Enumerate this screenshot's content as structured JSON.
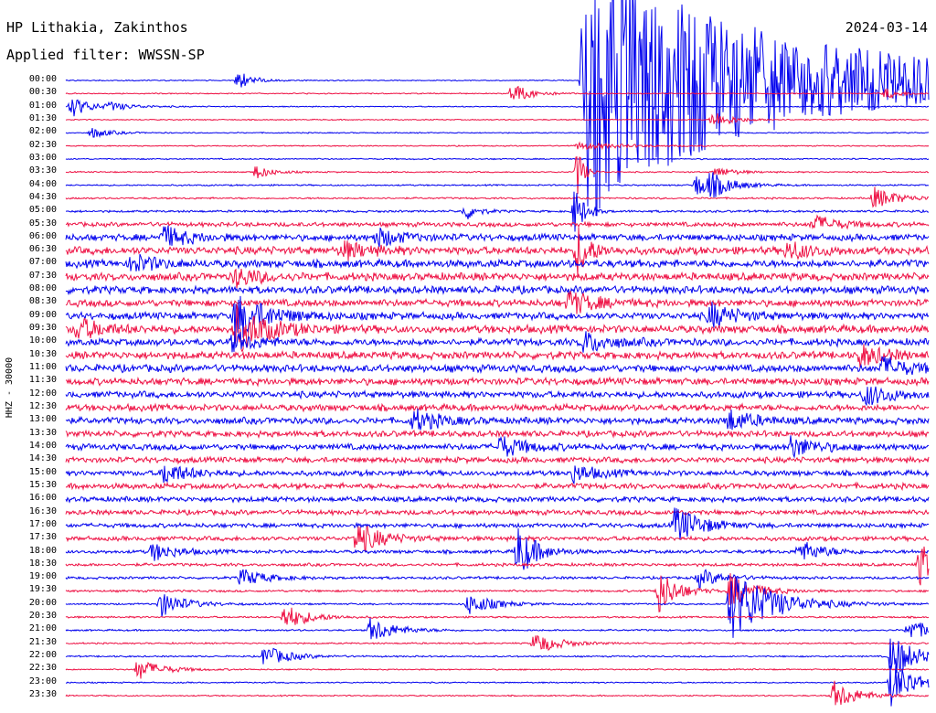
{
  "header": {
    "station": "HP Lithakia, Zakinthos",
    "date": "2024-03-14",
    "filter": "Applied filter: WWSSN-SP"
  },
  "channel_label": "HHZ - 30000",
  "time_labels": [
    "00:00",
    "00:30",
    "01:00",
    "01:30",
    "02:00",
    "02:30",
    "03:00",
    "03:30",
    "04:00",
    "04:30",
    "05:00",
    "05:30",
    "06:00",
    "06:30",
    "07:00",
    "07:30",
    "08:00",
    "08:30",
    "09:00",
    "09:30",
    "10:00",
    "10:30",
    "11:00",
    "11:30",
    "12:00",
    "12:30",
    "13:00",
    "13:30",
    "14:00",
    "14:30",
    "15:00",
    "15:30",
    "16:00",
    "16:30",
    "17:00",
    "17:30",
    "18:00",
    "18:30",
    "19:00",
    "19:30",
    "20:00",
    "20:30",
    "21:00",
    "21:30",
    "22:00",
    "22:30",
    "23:00",
    "23:30"
  ],
  "colors": {
    "trace_even": "#0000ee",
    "trace_odd": "#ee1144"
  },
  "chart_data": {
    "type": "line",
    "title": "HP Lithakia, Zakinthos",
    "rows": [
      "00:00",
      "00:30",
      "01:00",
      "01:30",
      "02:00",
      "02:30",
      "03:00",
      "03:30",
      "04:00",
      "04:30",
      "05:00",
      "05:30",
      "06:00",
      "06:30",
      "07:00",
      "07:30",
      "08:00",
      "08:30",
      "09:00",
      "09:30",
      "10:00",
      "10:30",
      "11:00",
      "11:30",
      "12:00",
      "12:30",
      "13:00",
      "13:30",
      "14:00",
      "14:30",
      "15:00",
      "15:30",
      "16:00",
      "16:30",
      "17:00",
      "17:30",
      "18:00",
      "18:30",
      "19:00",
      "19:30",
      "20:00",
      "20:30",
      "21:00",
      "21:30",
      "22:00",
      "22:30",
      "23:00",
      "23:30"
    ],
    "row_duration_minutes": 30,
    "noise_level_per_row": [
      0.5,
      0.5,
      0.5,
      0.5,
      0.5,
      0.5,
      0.6,
      0.6,
      0.7,
      0.8,
      1.0,
      2.0,
      3.0,
      3.5,
      3.5,
      3.5,
      3.5,
      3.2,
      3.2,
      3.6,
      3.2,
      3.4,
      3.4,
      3.2,
      3.0,
      3.0,
      3.0,
      2.8,
      2.8,
      2.6,
      2.4,
      2.6,
      2.4,
      2.2,
      2.0,
      2.0,
      1.6,
      1.4,
      1.2,
      1.0,
      0.8,
      0.8,
      0.8,
      0.7,
      0.7,
      0.6,
      0.6,
      0.6
    ],
    "events": [
      {
        "row": 0,
        "minute": 18.0,
        "amplitude": 140,
        "decay_minutes": 7
      },
      {
        "row": 0,
        "minute": 6.0,
        "amplitude": 10,
        "decay_minutes": 0.5
      },
      {
        "row": 0,
        "minute": 18.2,
        "amplitude": 30,
        "decay_minutes": 1
      },
      {
        "row": 1,
        "minute": 15.5,
        "amplitude": 12,
        "decay_minutes": 0.6
      },
      {
        "row": 1,
        "minute": 28.5,
        "amplitude": 6,
        "decay_minutes": 0.5
      },
      {
        "row": 2,
        "minute": 0.2,
        "amplitude": 12,
        "decay_minutes": 0.6
      },
      {
        "row": 2,
        "minute": 1.5,
        "amplitude": 4,
        "decay_minutes": 0.8
      },
      {
        "row": 3,
        "minute": 22.5,
        "amplitude": 10,
        "decay_minutes": 0.6
      },
      {
        "row": 4,
        "minute": 0.9,
        "amplitude": 6,
        "decay_minutes": 0.6
      },
      {
        "row": 5,
        "minute": 17.8,
        "amplitude": 4,
        "decay_minutes": 1.5
      },
      {
        "row": 7,
        "minute": 6.6,
        "amplitude": 8,
        "decay_minutes": 0.5
      },
      {
        "row": 7,
        "minute": 17.8,
        "amplitude": 30,
        "decay_minutes": 0.2
      },
      {
        "row": 7,
        "minute": 22.6,
        "amplitude": 6,
        "decay_minutes": 0.6
      },
      {
        "row": 8,
        "minute": 21.9,
        "amplitude": 12,
        "decay_minutes": 0.8
      },
      {
        "row": 8,
        "minute": 22.4,
        "amplitude": 10,
        "decay_minutes": 0.6
      },
      {
        "row": 9,
        "minute": 28.1,
        "amplitude": 12,
        "decay_minutes": 0.8
      },
      {
        "row": 10,
        "minute": 13.9,
        "amplitude": 10,
        "decay_minutes": 0.4
      },
      {
        "row": 10,
        "minute": 17.7,
        "amplitude": 28,
        "decay_minutes": 0.3
      },
      {
        "row": 11,
        "minute": 26.0,
        "amplitude": 10,
        "decay_minutes": 0.8
      },
      {
        "row": 12,
        "minute": 3.4,
        "amplitude": 12,
        "decay_minutes": 0.8
      },
      {
        "row": 12,
        "minute": 10.8,
        "amplitude": 10,
        "decay_minutes": 0.8
      },
      {
        "row": 13,
        "minute": 9.6,
        "amplitude": 10,
        "decay_minutes": 0.8
      },
      {
        "row": 13,
        "minute": 17.8,
        "amplitude": 28,
        "decay_minutes": 0.4
      },
      {
        "row": 13,
        "minute": 25.1,
        "amplitude": 10,
        "decay_minutes": 0.8
      },
      {
        "row": 14,
        "minute": 2.3,
        "amplitude": 10,
        "decay_minutes": 0.8
      },
      {
        "row": 15,
        "minute": 5.9,
        "amplitude": 10,
        "decay_minutes": 0.8
      },
      {
        "row": 17,
        "minute": 17.5,
        "amplitude": 14,
        "decay_minutes": 0.8
      },
      {
        "row": 18,
        "minute": 5.9,
        "amplitude": 26,
        "decay_minutes": 1.0
      },
      {
        "row": 18,
        "minute": 22.4,
        "amplitude": 14,
        "decay_minutes": 0.8
      },
      {
        "row": 19,
        "minute": 0.4,
        "amplitude": 12,
        "decay_minutes": 0.8
      },
      {
        "row": 19,
        "minute": 5.9,
        "amplitude": 26,
        "decay_minutes": 1.0
      },
      {
        "row": 20,
        "minute": 5.8,
        "amplitude": 10,
        "decay_minutes": 0.8
      },
      {
        "row": 20,
        "minute": 18.0,
        "amplitude": 12,
        "decay_minutes": 0.8
      },
      {
        "row": 21,
        "minute": 27.6,
        "amplitude": 12,
        "decay_minutes": 0.8
      },
      {
        "row": 22,
        "minute": 28.4,
        "amplitude": 12,
        "decay_minutes": 0.8
      },
      {
        "row": 24,
        "minute": 27.8,
        "amplitude": 12,
        "decay_minutes": 0.8
      },
      {
        "row": 26,
        "minute": 12.1,
        "amplitude": 12,
        "decay_minutes": 0.8
      },
      {
        "row": 26,
        "minute": 23.0,
        "amplitude": 12,
        "decay_minutes": 0.8
      },
      {
        "row": 28,
        "minute": 15.1,
        "amplitude": 12,
        "decay_minutes": 0.8
      },
      {
        "row": 28,
        "minute": 25.2,
        "amplitude": 12,
        "decay_minutes": 0.8
      },
      {
        "row": 30,
        "minute": 3.4,
        "amplitude": 12,
        "decay_minutes": 0.8
      },
      {
        "row": 30,
        "minute": 17.6,
        "amplitude": 10,
        "decay_minutes": 0.8
      },
      {
        "row": 34,
        "minute": 21.2,
        "amplitude": 22,
        "decay_minutes": 0.8
      },
      {
        "row": 36,
        "minute": 3.0,
        "amplitude": 10,
        "decay_minutes": 0.8
      },
      {
        "row": 36,
        "minute": 15.7,
        "amplitude": 30,
        "decay_minutes": 0.6
      },
      {
        "row": 36,
        "minute": 25.5,
        "amplitude": 12,
        "decay_minutes": 0.8
      },
      {
        "row": 37,
        "minute": 29.7,
        "amplitude": 24,
        "decay_minutes": 0.6
      },
      {
        "row": 38,
        "minute": 6.1,
        "amplitude": 10,
        "decay_minutes": 0.8
      },
      {
        "row": 38,
        "minute": 22.0,
        "amplitude": 10,
        "decay_minutes": 0.8
      },
      {
        "row": 39,
        "minute": 20.6,
        "amplitude": 26,
        "decay_minutes": 0.6
      },
      {
        "row": 39,
        "minute": 23.1,
        "amplitude": 18,
        "decay_minutes": 0.8
      },
      {
        "row": 40,
        "minute": 23.1,
        "amplitude": 40,
        "decay_minutes": 1.4
      },
      {
        "row": 40,
        "minute": 3.3,
        "amplitude": 14,
        "decay_minutes": 0.8
      },
      {
        "row": 40,
        "minute": 14.0,
        "amplitude": 12,
        "decay_minutes": 0.8
      },
      {
        "row": 41,
        "minute": 7.6,
        "amplitude": 14,
        "decay_minutes": 0.8
      },
      {
        "row": 42,
        "minute": 10.6,
        "amplitude": 14,
        "decay_minutes": 0.8
      },
      {
        "row": 42,
        "minute": 29.3,
        "amplitude": 12,
        "decay_minutes": 0.8
      },
      {
        "row": 43,
        "minute": 16.3,
        "amplitude": 12,
        "decay_minutes": 0.8
      },
      {
        "row": 44,
        "minute": 6.9,
        "amplitude": 12,
        "decay_minutes": 0.8
      },
      {
        "row": 44,
        "minute": 28.7,
        "amplitude": 26,
        "decay_minutes": 0.8
      },
      {
        "row": 45,
        "minute": 2.5,
        "amplitude": 12,
        "decay_minutes": 0.8
      },
      {
        "row": 46,
        "minute": 28.7,
        "amplitude": 26,
        "decay_minutes": 0.8
      },
      {
        "row": 47,
        "minute": 26.7,
        "amplitude": 16,
        "decay_minutes": 0.8
      },
      {
        "row": 35,
        "minute": 10.1,
        "amplitude": 18,
        "decay_minutes": 0.8
      }
    ]
  }
}
